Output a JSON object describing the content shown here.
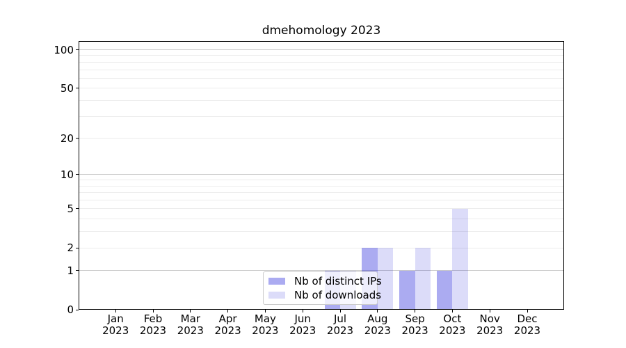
{
  "chart_data": {
    "type": "bar",
    "title": "dmehomology 2023",
    "x_categories": [
      "Jan",
      "Feb",
      "Mar",
      "Apr",
      "May",
      "Jun",
      "Jul",
      "Aug",
      "Sep",
      "Oct",
      "Nov",
      "Dec"
    ],
    "x_year_label": "2023",
    "series": [
      {
        "name": "Nb of distinct IPs",
        "color": "rgba(10,10,215,0.34)",
        "swatch_hex": "#acacf1",
        "values": [
          0,
          0,
          0,
          0,
          0,
          0,
          1,
          2,
          1,
          1,
          0,
          0
        ]
      },
      {
        "name": "Nb of downloads",
        "color": "rgba(10,10,215,0.14)",
        "swatch_hex": "#ddddf9",
        "values": [
          0,
          0,
          0,
          0,
          0,
          0,
          1,
          2,
          2,
          5,
          0,
          0
        ]
      }
    ],
    "y_scale": "log1p",
    "ylim": [
      0,
      118
    ],
    "y_ticks": [
      0,
      1,
      2,
      5,
      10,
      20,
      50,
      100
    ],
    "y_minor_grid": [
      2,
      3,
      4,
      5,
      6,
      7,
      8,
      9,
      20,
      30,
      40,
      50,
      60,
      70,
      80,
      90
    ],
    "y_major_grid": [
      1,
      10,
      100
    ],
    "grid": "on",
    "legend_position": "lower center",
    "xlabel": "",
    "ylabel": ""
  },
  "colors": {
    "background": "#ffffff",
    "spine": "#000000",
    "text": "#000000",
    "grid_minor": "#ececec",
    "grid_major": "#c8c8c8",
    "legend_border": "#cccccc",
    "legend_bg": "rgba(255,255,255,0.8)"
  }
}
